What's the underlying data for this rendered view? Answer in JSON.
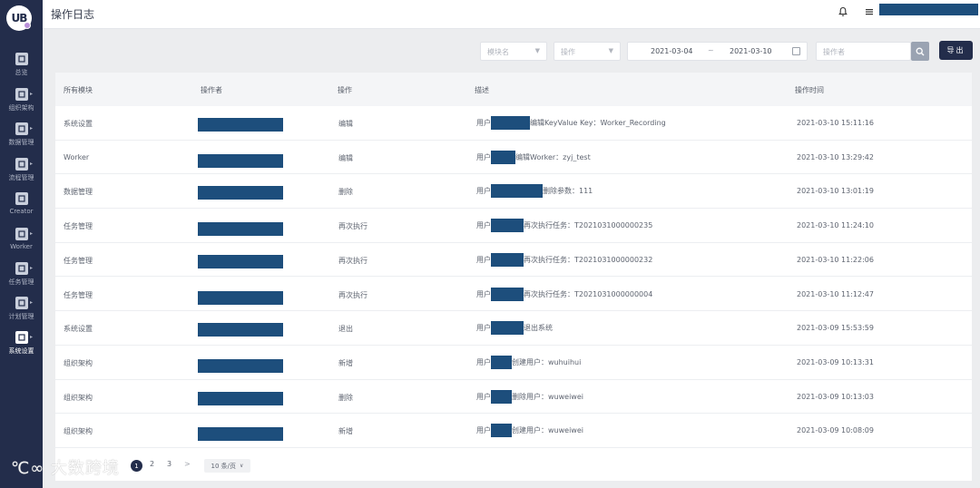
{
  "header": {
    "title": "操作日志"
  },
  "logo": {
    "text": "UB"
  },
  "sidebar": {
    "items": [
      {
        "label": "总览",
        "icon": "home-icon"
      },
      {
        "label": "组织架构",
        "icon": "org-icon",
        "has_arrow": true
      },
      {
        "label": "数据管理",
        "icon": "sliders-icon",
        "has_arrow": true
      },
      {
        "label": "流程管理",
        "icon": "flow-icon",
        "has_arrow": true
      },
      {
        "label": "Creator",
        "icon": "monitor-icon"
      },
      {
        "label": "Worker",
        "icon": "worker-icon",
        "has_arrow": true
      },
      {
        "label": "任务管理",
        "icon": "task-icon",
        "has_arrow": true
      },
      {
        "label": "计划管理",
        "icon": "clock-icon",
        "has_arrow": true
      },
      {
        "label": "系统设置",
        "icon": "settings-icon",
        "has_arrow": true,
        "active": true
      }
    ]
  },
  "filters": {
    "module_placeholder": "模块名",
    "operation_placeholder": "操作",
    "date_start": "2021-03-04",
    "date_separator": "~",
    "date_end": "2021-03-10",
    "operator_placeholder": "操作者",
    "export_label": "导出"
  },
  "table": {
    "columns": [
      "所有模块",
      "操作者",
      "操作",
      "描述",
      "操作时间"
    ],
    "rows": [
      {
        "module": "系统设置",
        "operation": "编辑",
        "desc_prefix": "用户",
        "desc_suffix": "编辑KeyValue Key：Worker_Recording",
        "time": "2021-03-10 15:11:16"
      },
      {
        "module": "Worker",
        "operation": "编辑",
        "desc_prefix": "用户",
        "desc_suffix": "编辑Worker：zyj_test",
        "time": "2021-03-10 13:29:42"
      },
      {
        "module": "数据管理",
        "operation": "删除",
        "desc_prefix": "用户",
        "desc_suffix": "删除参数：111",
        "time": "2021-03-10 13:01:19"
      },
      {
        "module": "任务管理",
        "operation": "再次执行",
        "desc_prefix": "用户",
        "desc_suffix": "再次执行任务：T2021031000000235",
        "time": "2021-03-10 11:24:10"
      },
      {
        "module": "任务管理",
        "operation": "再次执行",
        "desc_prefix": "用户",
        "desc_suffix": "再次执行任务：T2021031000000232",
        "time": "2021-03-10 11:22:06"
      },
      {
        "module": "任务管理",
        "operation": "再次执行",
        "desc_prefix": "用户",
        "desc_suffix": "再次执行任务：T2021031000000004",
        "time": "2021-03-10 11:12:47"
      },
      {
        "module": "系统设置",
        "operation": "退出",
        "desc_prefix": "用户",
        "desc_suffix": "退出系统",
        "time": "2021-03-09 15:53:59"
      },
      {
        "module": "组织架构",
        "operation": "新增",
        "desc_prefix": "用户",
        "desc_suffix": "创建用户：wuhuihui",
        "time": "2021-03-09 10:13:31"
      },
      {
        "module": "组织架构",
        "operation": "删除",
        "desc_prefix": "用户",
        "desc_suffix": "删除用户：wuweiwei",
        "time": "2021-03-09 10:13:03"
      },
      {
        "module": "组织架构",
        "operation": "新增",
        "desc_prefix": "用户",
        "desc_suffix": "创建用户：wuweiwei",
        "time": "2021-03-09 10:08:09"
      }
    ]
  },
  "pagination": {
    "pages": [
      "1",
      "2",
      "3"
    ],
    "current": "1",
    "next": ">",
    "page_size": "10 条/页"
  },
  "watermark": "大数跨境",
  "colors": {
    "sidebar": "#232d4b",
    "redaction": "#1d4e7c",
    "primary_button": "#232d4b"
  }
}
